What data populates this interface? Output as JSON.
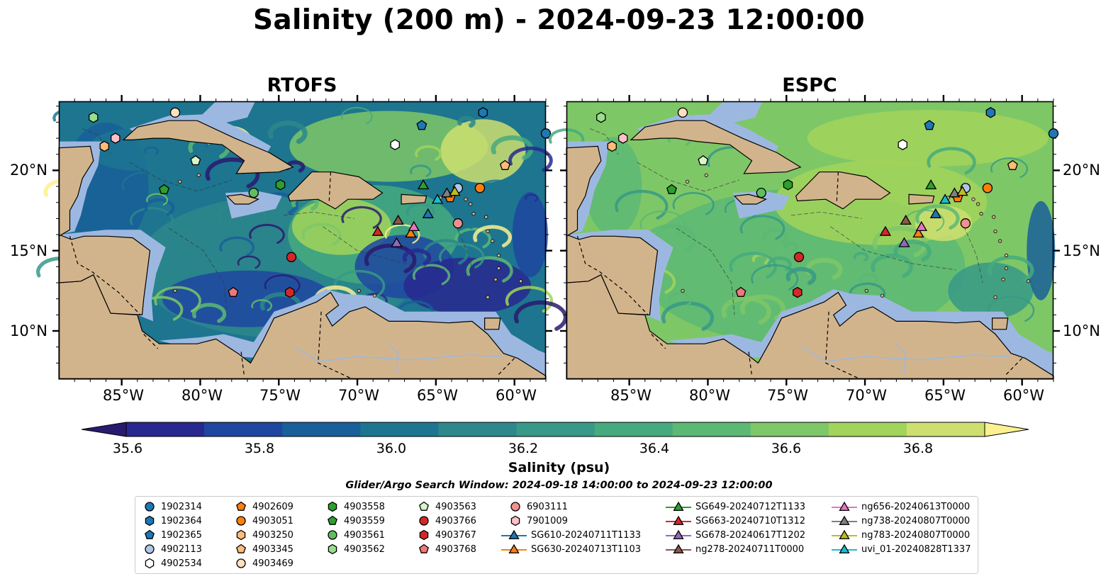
{
  "title": "Salinity (200 m) - 2024-09-23 12:00:00",
  "panels": [
    {
      "title": "RTOFS"
    },
    {
      "title": "ESPC"
    }
  ],
  "lat_ticks": [
    "20°N",
    "15°N",
    "10°N"
  ],
  "lon_ticks": [
    "85°W",
    "80°W",
    "75°W",
    "70°W",
    "65°W",
    "60°W"
  ],
  "colorbar": {
    "label": "Salinity (psu)",
    "ticks": [
      "35.6",
      "35.8",
      "36.0",
      "36.2",
      "36.4",
      "36.6",
      "36.8"
    ],
    "min": 35.6,
    "max": 36.9,
    "colors": [
      "#2a1a6e",
      "#28298f",
      "#1f46a0",
      "#195f9a",
      "#1d7590",
      "#2d878b",
      "#379987",
      "#45aa7e",
      "#5cb974",
      "#7ec767",
      "#a2d35b",
      "#cedf70",
      "#fbf190"
    ]
  },
  "search_window": "Glider/Argo Search Window: 2024-09-18 14:00:00 to 2024-09-23 12:00:00",
  "legend": [
    {
      "label": "1902314",
      "marker": "circle",
      "color": "#1f77b4"
    },
    {
      "label": "1902364",
      "marker": "hexagon",
      "color": "#1f77b4"
    },
    {
      "label": "1902365",
      "marker": "pentagon",
      "color": "#1f77b4"
    },
    {
      "label": "4902113",
      "marker": "circle",
      "color": "#aec7e8"
    },
    {
      "label": "4902534",
      "marker": "hexagon",
      "color": "#ffffff"
    },
    {
      "label": "4902609",
      "marker": "pentagon",
      "color": "#ff7f0e"
    },
    {
      "label": "4903051",
      "marker": "circle",
      "color": "#ff7f0e"
    },
    {
      "label": "4903250",
      "marker": "hexagon",
      "color": "#ffbb78"
    },
    {
      "label": "4903345",
      "marker": "pentagon",
      "color": "#ffbb78"
    },
    {
      "label": "4903469",
      "marker": "circle",
      "color": "#ffe0c0"
    },
    {
      "label": "4903558",
      "marker": "hexagon",
      "color": "#2ca02c"
    },
    {
      "label": "4903559",
      "marker": "pentagon",
      "color": "#2ca02c"
    },
    {
      "label": "4903561",
      "marker": "circle",
      "color": "#5fbf5f"
    },
    {
      "label": "4903562",
      "marker": "hexagon",
      "color": "#98df8a"
    },
    {
      "label": "4903563",
      "marker": "pentagon",
      "color": "#d8f5c8"
    },
    {
      "label": "4903766",
      "marker": "circle",
      "color": "#d62728"
    },
    {
      "label": "4903767",
      "marker": "hexagon",
      "color": "#d62728"
    },
    {
      "label": "4903768",
      "marker": "pentagon",
      "color": "#f07878"
    },
    {
      "label": "6903111",
      "marker": "circle",
      "color": "#f09090"
    },
    {
      "label": "7901009",
      "marker": "hexagon",
      "color": "#ffc0c8"
    },
    {
      "label": "SG610-20240711T1133",
      "marker": "triangle",
      "color": "#1f77b4"
    },
    {
      "label": "SG630-20240713T1103",
      "marker": "triangle",
      "color": "#ff7f0e"
    },
    {
      "label": "SG649-20240712T1133",
      "marker": "triangle",
      "color": "#2ca02c"
    },
    {
      "label": "SG663-20240710T1312",
      "marker": "triangle",
      "color": "#d62728"
    },
    {
      "label": "SG678-20240617T1202",
      "marker": "triangle",
      "color": "#9467bd"
    },
    {
      "label": "ng278-20240711T0000",
      "marker": "triangle",
      "color": "#8c564b"
    },
    {
      "label": "ng656-20240613T0000",
      "marker": "triangle",
      "color": "#e377c2"
    },
    {
      "label": "ng738-20240807T0000",
      "marker": "triangle",
      "color": "#7f7f7f"
    },
    {
      "label": "ng783-20240807T0000",
      "marker": "triangle",
      "color": "#bcbd22"
    },
    {
      "label": "uvi_01-20240828T1337",
      "marker": "triangle",
      "color": "#17becf"
    }
  ],
  "platforms": [
    {
      "id": "1902314",
      "lon": -58.0,
      "lat": 22.3
    },
    {
      "id": "1902364",
      "lon": -62.0,
      "lat": 23.6
    },
    {
      "id": "1902365",
      "lon": -65.9,
      "lat": 22.8
    },
    {
      "id": "4902113",
      "lon": -63.6,
      "lat": 18.9
    },
    {
      "id": "4902534",
      "lon": -67.6,
      "lat": 21.6
    },
    {
      "id": "4902609",
      "lon": -64.1,
      "lat": 18.3
    },
    {
      "id": "4903051",
      "lon": -62.2,
      "lat": 18.9
    },
    {
      "id": "4903250",
      "lon": -86.1,
      "lat": 21.5
    },
    {
      "id": "4903345",
      "lon": -60.6,
      "lat": 20.3
    },
    {
      "id": "4903469",
      "lon": -81.6,
      "lat": 23.6
    },
    {
      "id": "4903558",
      "lon": -74.9,
      "lat": 19.1
    },
    {
      "id": "4903559",
      "lon": -82.3,
      "lat": 18.8
    },
    {
      "id": "4903561",
      "lon": -76.6,
      "lat": 18.6
    },
    {
      "id": "4903562",
      "lon": -86.8,
      "lat": 23.3
    },
    {
      "id": "4903563",
      "lon": -80.3,
      "lat": 20.6
    },
    {
      "id": "4903766",
      "lon": -74.2,
      "lat": 14.6
    },
    {
      "id": "4903767",
      "lon": -74.3,
      "lat": 12.4
    },
    {
      "id": "4903768",
      "lon": -77.9,
      "lat": 12.4
    },
    {
      "id": "6903111",
      "lon": -63.6,
      "lat": 16.7
    },
    {
      "id": "7901009",
      "lon": -85.4,
      "lat": 22.0
    },
    {
      "id": "SG610-20240711T1133",
      "lon": -65.5,
      "lat": 17.3
    },
    {
      "id": "SG630-20240713T1103",
      "lon": -66.6,
      "lat": 16.1
    },
    {
      "id": "SG649-20240712T1133",
      "lon": -65.8,
      "lat": 19.1
    },
    {
      "id": "SG663-20240710T1312",
      "lon": -68.7,
      "lat": 16.2
    },
    {
      "id": "SG678-20240617T1202",
      "lon": -67.5,
      "lat": 15.5
    },
    {
      "id": "ng278-20240711T0000",
      "lon": -67.4,
      "lat": 16.9
    },
    {
      "id": "ng656-20240613T0000",
      "lon": -66.4,
      "lat": 16.5
    },
    {
      "id": "ng738-20240807T0000",
      "lon": -64.3,
      "lat": 18.6
    },
    {
      "id": "ng783-20240807T0000",
      "lon": -63.8,
      "lat": 18.7
    },
    {
      "id": "uvi_01-20240828T1337",
      "lon": -64.9,
      "lat": 18.2
    }
  ],
  "map_extent": {
    "lon": [
      -89.0,
      -58.0
    ],
    "lat": [
      7.0,
      24.3
    ]
  }
}
